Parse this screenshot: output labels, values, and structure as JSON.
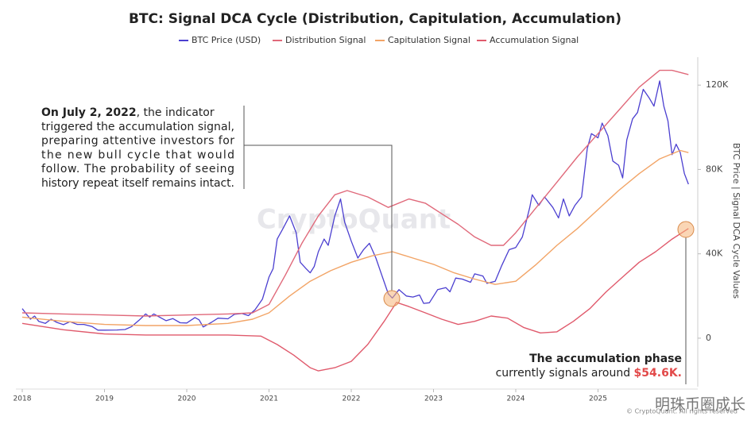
{
  "chart_data": {
    "type": "line",
    "title": "BTC: Signal DCA Cycle (Distribution, Capitulation, Accumulation)",
    "y_label": "BTC Price | Signal DCA Cycle Values",
    "xlim": [
      2017.95,
      2026.25
    ],
    "xticks": [
      2018,
      2019,
      2020,
      2021,
      2022,
      2023,
      2024,
      2025
    ],
    "ylim": [
      -23000,
      134000
    ],
    "yticks": [
      0,
      {
        "value": 40000,
        "label": "40K"
      },
      {
        "value": 80000,
        "label": "80K"
      },
      {
        "value": 120000,
        "label": "120K"
      }
    ],
    "grid": false,
    "legend": "top",
    "series": [
      {
        "name": "BTC Price (USD)",
        "color": "#4b3fd0",
        "x": [
          2018.0,
          2018.05,
          2018.1,
          2018.15,
          2018.2,
          2018.28,
          2018.35,
          2018.42,
          2018.5,
          2018.58,
          2018.67,
          2018.75,
          2018.85,
          2018.92,
          2019.0,
          2019.15,
          2019.25,
          2019.33,
          2019.42,
          2019.5,
          2019.55,
          2019.6,
          2019.67,
          2019.75,
          2019.83,
          2019.92,
          2020.0,
          2020.1,
          2020.15,
          2020.2,
          2020.3,
          2020.38,
          2020.5,
          2020.58,
          2020.67,
          2020.75,
          2020.83,
          2020.92,
          2021.0,
          2021.05,
          2021.1,
          2021.17,
          2021.25,
          2021.33,
          2021.38,
          2021.45,
          2021.5,
          2021.55,
          2021.6,
          2021.67,
          2021.72,
          2021.8,
          2021.87,
          2021.92,
          2022.0,
          2022.08,
          2022.15,
          2022.22,
          2022.3,
          2022.37,
          2022.45,
          2022.5,
          2022.58,
          2022.67,
          2022.75,
          2022.83,
          2022.88,
          2022.95,
          2023.05,
          2023.15,
          2023.2,
          2023.27,
          2023.35,
          2023.45,
          2023.5,
          2023.6,
          2023.65,
          2023.75,
          2023.83,
          2023.92,
          2024.0,
          2024.08,
          2024.17,
          2024.2,
          2024.28,
          2024.35,
          2024.45,
          2024.52,
          2024.58,
          2024.65,
          2024.72,
          2024.8,
          2024.87,
          2024.92,
          2025.0,
          2025.05,
          2025.12,
          2025.18,
          2025.25,
          2025.3,
          2025.35,
          2025.42,
          2025.48,
          2025.55,
          2025.62,
          2025.68,
          2025.75,
          2025.8,
          2025.85,
          2025.9,
          2025.95,
          2026.0,
          2026.05,
          2026.1
        ],
        "values": [
          14000,
          11500,
          9000,
          10500,
          8000,
          7000,
          9000,
          7500,
          6400,
          7800,
          6500,
          6500,
          5500,
          3800,
          3800,
          3900,
          4100,
          5500,
          8500,
          11500,
          10000,
          11500,
          10000,
          8300,
          9300,
          7300,
          7200,
          9800,
          8700,
          5300,
          7500,
          9500,
          9200,
          11300,
          11700,
          10700,
          13500,
          18500,
          29000,
          33000,
          47000,
          52000,
          58000,
          50000,
          36000,
          33000,
          31000,
          34000,
          41000,
          47000,
          44000,
          58000,
          66000,
          55000,
          46000,
          38000,
          42000,
          45000,
          38000,
          30000,
          21000,
          19000,
          23000,
          20000,
          19500,
          20500,
          16500,
          16800,
          23000,
          24000,
          22000,
          28500,
          28000,
          26500,
          30500,
          29500,
          26000,
          27000,
          34500,
          42000,
          43000,
          48000,
          62000,
          68000,
          63000,
          67000,
          62000,
          57000,
          66000,
          58000,
          63000,
          67000,
          90000,
          97000,
          95000,
          102000,
          96000,
          84000,
          82000,
          76000,
          94000,
          104000,
          107000,
          118000,
          114000,
          110000,
          122000,
          110000,
          103000,
          87000,
          92000,
          88000,
          78000,
          73000
        ]
      },
      {
        "name": "Distribution Signal",
        "color": "#e0697a",
        "x": [
          2018,
          2018.5,
          2019,
          2019.5,
          2020,
          2020.5,
          2020.8,
          2021.0,
          2021.2,
          2021.4,
          2021.6,
          2021.8,
          2021.95,
          2022.2,
          2022.45,
          2022.7,
          2022.9,
          2023.1,
          2023.3,
          2023.5,
          2023.7,
          2023.85,
          2024.0,
          2024.25,
          2024.5,
          2024.75,
          2025.0,
          2025.25,
          2025.5,
          2025.75,
          2025.9,
          2026.1
        ],
        "values": [
          12000,
          11500,
          11000,
          10500,
          11000,
          11500,
          12000,
          16000,
          30000,
          45000,
          58000,
          68000,
          70000,
          67000,
          62000,
          66000,
          64000,
          59000,
          54000,
          48000,
          44000,
          44000,
          50000,
          62000,
          74000,
          86000,
          97000,
          108000,
          119000,
          127000,
          127000,
          125000
        ]
      },
      {
        "name": "Capitulation Signal",
        "color": "#f2a466",
        "x": [
          2018,
          2018.5,
          2019,
          2019.5,
          2020,
          2020.5,
          2020.8,
          2021.0,
          2021.25,
          2021.5,
          2021.75,
          2022.0,
          2022.25,
          2022.5,
          2022.75,
          2023.0,
          2023.25,
          2023.5,
          2023.75,
          2024.0,
          2024.25,
          2024.5,
          2024.75,
          2025.0,
          2025.25,
          2025.5,
          2025.75,
          2026.0,
          2026.1
        ],
        "values": [
          10000,
          8000,
          6500,
          6000,
          6000,
          7000,
          9000,
          12000,
          20000,
          27000,
          32000,
          36000,
          39000,
          41000,
          38000,
          35000,
          31000,
          28000,
          25500,
          27000,
          35000,
          44000,
          52000,
          61000,
          70000,
          78000,
          85000,
          89000,
          88000
        ]
      },
      {
        "name": "Accumulation Signal",
        "color": "#e05a6c",
        "x": [
          2018,
          2018.5,
          2019,
          2019.5,
          2020,
          2020.5,
          2020.9,
          2021.1,
          2021.3,
          2021.5,
          2021.6,
          2021.8,
          2022.0,
          2022.2,
          2022.4,
          2022.55,
          2022.7,
          2022.9,
          2023.1,
          2023.3,
          2023.5,
          2023.7,
          2023.9,
          2024.1,
          2024.3,
          2024.5,
          2024.7,
          2024.9,
          2025.1,
          2025.3,
          2025.5,
          2025.7,
          2025.9,
          2026.1
        ],
        "values": [
          7000,
          4000,
          2000,
          1500,
          1500,
          1500,
          1000,
          -3000,
          -8000,
          -14000,
          -15500,
          -14000,
          -11000,
          -3000,
          8000,
          17000,
          15000,
          12000,
          9000,
          6500,
          8000,
          10500,
          9500,
          5000,
          2500,
          3000,
          8000,
          14000,
          22000,
          29000,
          36000,
          41000,
          47000,
          52000
        ]
      }
    ],
    "annotation_left": {
      "bold": "On July 2, 2022",
      "lines": [
        ", the indicator",
        "triggered the accumulation signal,",
        "preparing attentive investors for",
        "the new bull cycle that would",
        "follow. The probability of seeing",
        "history repeat itself remains intact."
      ]
    },
    "annotation_right": {
      "title": "The accumulation phase",
      "text": "currently signals around ",
      "highlight": "$54.6K."
    },
    "watermark": "CryptoQuant",
    "copyright": "© CryptoQuant. All rights reserved",
    "source_mark": "明珠币圈成长"
  }
}
